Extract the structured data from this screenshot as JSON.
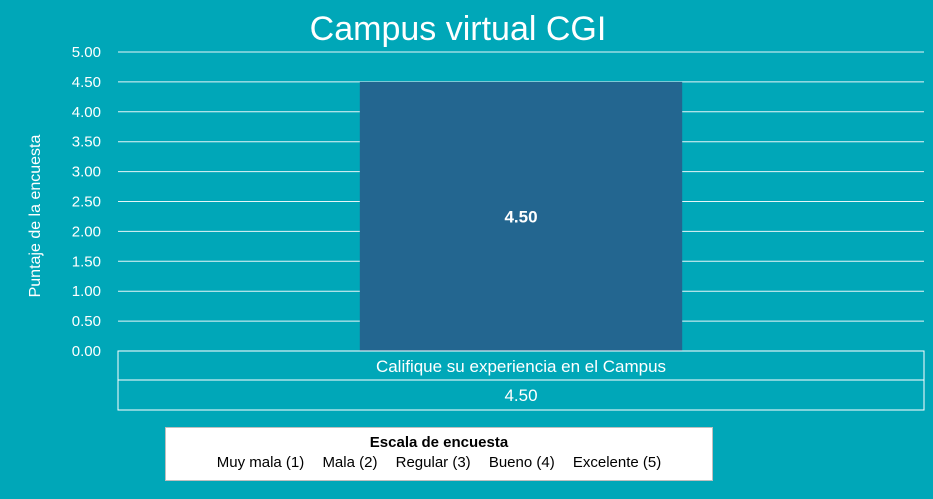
{
  "chart_data": {
    "type": "bar",
    "title": "Campus virtual CGI",
    "ylabel": "Puntaje de la encuesta",
    "xlabel": "",
    "ylim": [
      0,
      5
    ],
    "yticks": [
      "0.00",
      "0.50",
      "1.00",
      "1.50",
      "2.00",
      "2.50",
      "3.00",
      "3.50",
      "4.00",
      "4.50",
      "5.00"
    ],
    "categories": [
      "Califique su experiencia en el Campus"
    ],
    "values": [
      4.5
    ],
    "value_labels": [
      "4.50"
    ],
    "data_table": {
      "rows": [
        {
          "header": "Califique su experiencia en el Campus",
          "value": "4.50"
        }
      ]
    },
    "bar_color": "#236690",
    "background_color": "#00A7B8",
    "grid": true
  },
  "legend": {
    "title": "Escala de encuesta",
    "items": [
      "Muy mala (1)",
      "Mala (2)",
      "Regular (3)",
      "Bueno (4)",
      "Excelente (5)"
    ]
  }
}
